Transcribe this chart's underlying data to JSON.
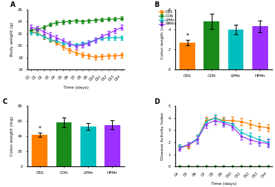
{
  "days_line": [
    0,
    1,
    2,
    3,
    4,
    5,
    6,
    7,
    8,
    9,
    10,
    11,
    12,
    13,
    14
  ],
  "body_weight": {
    "DSS": [
      22.3,
      22.1,
      21.5,
      21.0,
      20.5,
      19.8,
      19.2,
      18.8,
      18.5,
      18.3,
      18.1,
      18.2,
      18.3,
      18.3,
      18.4
    ],
    "CON": [
      22.5,
      22.7,
      23.0,
      23.5,
      23.8,
      23.9,
      24.0,
      24.1,
      24.0,
      24.1,
      24.2,
      24.3,
      24.4,
      24.4,
      24.5
    ],
    "LPMn": [
      22.2,
      22.0,
      21.5,
      21.0,
      20.7,
      20.4,
      20.2,
      20.1,
      20.3,
      20.5,
      21.0,
      21.2,
      21.3,
      21.3,
      21.3
    ],
    "HPMn": [
      23.0,
      22.8,
      22.3,
      21.8,
      21.3,
      20.8,
      20.3,
      19.9,
      20.1,
      20.4,
      20.9,
      21.5,
      22.0,
      22.5,
      23.0
    ]
  },
  "body_weight_err": {
    "DSS": [
      0.4,
      0.4,
      0.4,
      0.4,
      0.4,
      0.4,
      0.4,
      0.4,
      0.4,
      0.4,
      0.4,
      0.4,
      0.4,
      0.4,
      0.4
    ],
    "CON": [
      0.3,
      0.3,
      0.3,
      0.3,
      0.3,
      0.3,
      0.3,
      0.3,
      0.3,
      0.3,
      0.3,
      0.3,
      0.3,
      0.3,
      0.3
    ],
    "LPMn": [
      0.3,
      0.3,
      0.3,
      0.3,
      0.3,
      0.3,
      0.3,
      0.3,
      0.3,
      0.3,
      0.3,
      0.3,
      0.3,
      0.3,
      0.3
    ],
    "HPMn": [
      0.4,
      0.4,
      0.4,
      0.4,
      0.4,
      0.4,
      0.4,
      0.4,
      0.4,
      0.4,
      0.4,
      0.4,
      0.4,
      0.4,
      0.4
    ]
  },
  "colon_length": {
    "categories": [
      "DSS",
      "CON",
      "LPMn",
      "HPMn"
    ],
    "values": [
      2.7,
      4.8,
      4.0,
      4.3
    ],
    "errors": [
      0.25,
      0.75,
      0.5,
      0.55
    ],
    "colors": [
      "#FF7F00",
      "#1A8A1A",
      "#00BEBE",
      "#9B30FF"
    ]
  },
  "colon_weight": {
    "categories": [
      "DSS",
      "CON",
      "LPMn",
      "HPMn"
    ],
    "values": [
      42.0,
      58.5,
      53.0,
      55.0
    ],
    "errors": [
      3.0,
      6.5,
      4.5,
      6.0
    ],
    "colors": [
      "#FF7F00",
      "#1A8A1A",
      "#00BEBE",
      "#9B30FF"
    ]
  },
  "dai_days": [
    4,
    5,
    6,
    7,
    8,
    9,
    10,
    11,
    12,
    13,
    14
  ],
  "dai": {
    "DSS": [
      1.6,
      1.7,
      2.3,
      3.8,
      4.0,
      3.8,
      3.8,
      3.7,
      3.5,
      3.3,
      3.2
    ],
    "CON": [
      0.0,
      0.0,
      0.0,
      0.0,
      0.0,
      0.0,
      0.0,
      0.0,
      0.0,
      0.0,
      0.0
    ],
    "LPMn": [
      1.6,
      1.8,
      2.3,
      3.7,
      4.0,
      3.7,
      3.5,
      2.8,
      2.5,
      2.2,
      2.0
    ],
    "HPMn": [
      1.5,
      1.8,
      2.2,
      3.5,
      3.8,
      3.6,
      3.3,
      2.5,
      2.2,
      2.0,
      1.9
    ]
  },
  "dai_err": {
    "DSS": [
      0.2,
      0.2,
      0.3,
      0.3,
      0.3,
      0.3,
      0.3,
      0.3,
      0.3,
      0.3,
      0.3
    ],
    "CON": [
      0.0,
      0.0,
      0.0,
      0.0,
      0.0,
      0.0,
      0.0,
      0.0,
      0.0,
      0.0,
      0.0
    ],
    "LPMn": [
      0.2,
      0.2,
      0.3,
      0.3,
      0.3,
      0.3,
      0.3,
      0.3,
      0.3,
      0.3,
      0.3
    ],
    "HPMn": [
      0.2,
      0.2,
      0.3,
      0.3,
      0.3,
      0.3,
      0.3,
      0.3,
      0.3,
      0.3,
      0.3
    ]
  },
  "dai_tick_labels": [
    "D4",
    "D5",
    "D6",
    "D7",
    "D8",
    "D9",
    "D10",
    "D11",
    "D12",
    "D13",
    "D14"
  ],
  "bw_tick_labels": [
    "D0",
    "D1",
    "D2",
    "D3",
    "D4",
    "D5",
    "D6",
    "D7",
    "D8",
    "D9",
    "D10",
    "D11",
    "D12",
    "D13",
    "D14"
  ],
  "colors": {
    "DSS": "#FF7F00",
    "CON": "#1A8A1A",
    "LPMn": "#00BEBE",
    "HPMn": "#9B30FF"
  },
  "markers": {
    "DSS": "o",
    "CON": "D",
    "LPMn": "s",
    "HPMn": "^"
  },
  "line_labels": [
    "DSS",
    "CON",
    "LPMn",
    "HPMn"
  ]
}
